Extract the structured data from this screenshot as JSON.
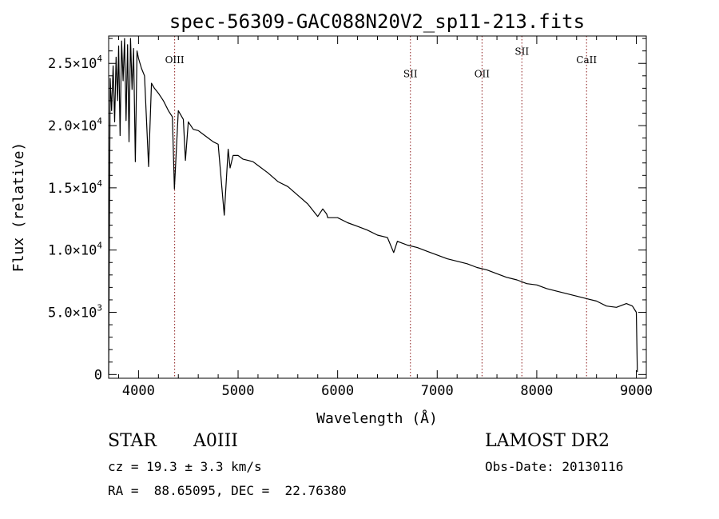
{
  "chart_data": {
    "type": "line",
    "title": "spec-56309-GAC088N20V2_sp11-213.fits",
    "xlabel": "Wavelength (Å)",
    "ylabel": "Flux (relative)",
    "xlim": [
      3700,
      9100
    ],
    "ylim": [
      -300,
      27200
    ],
    "x_ticks": [
      4000,
      5000,
      6000,
      7000,
      8000,
      9000
    ],
    "x_tick_labels": [
      "4000",
      "5000",
      "6000",
      "7000",
      "8000",
      "9000"
    ],
    "y_ticks": [
      0,
      5000,
      10000,
      15000,
      20000,
      25000
    ],
    "y_tick_labels": [
      {
        "mant": "0",
        "exp": ""
      },
      {
        "mant": "5.0×10",
        "exp": "3"
      },
      {
        "mant": "1.0×10",
        "exp": "4"
      },
      {
        "mant": "1.5×10",
        "exp": "4"
      },
      {
        "mant": "2.0×10",
        "exp": "4"
      },
      {
        "mant": "2.5×10",
        "exp": "4"
      }
    ],
    "grid": false,
    "line_color": "#000000",
    "marker_color": "#8b1a1a",
    "lines": [
      {
        "label": "OIII",
        "x": 4363,
        "label_y": 25000
      },
      {
        "label": "SII",
        "x": 6731,
        "label_y": 23900
      },
      {
        "label": "OII",
        "x": 7450,
        "label_y": 23900
      },
      {
        "label": "SII",
        "x": 7850,
        "label_y": 25700
      },
      {
        "label": "CaII",
        "x": 8500,
        "label_y": 25000
      }
    ],
    "series": [
      {
        "x": [
          3700,
          3715,
          3730,
          3745,
          3760,
          3775,
          3790,
          3800,
          3815,
          3830,
          3845,
          3860,
          3875,
          3890,
          3905,
          3920,
          3935,
          3950,
          3968,
          3985,
          4000,
          4030,
          4060,
          4101,
          4130,
          4160,
          4200,
          4250,
          4300,
          4340,
          4360,
          4400,
          4450,
          4471,
          4500,
          4550,
          4600,
          4650,
          4700,
          4750,
          4800,
          4861,
          4900,
          4920,
          4950,
          5000,
          5050,
          5100,
          5150,
          5200,
          5300,
          5400,
          5500,
          5600,
          5700,
          5800,
          5850,
          5890,
          5900,
          6000,
          6100,
          6200,
          6300,
          6400,
          6500,
          6563,
          6600,
          6700,
          6800,
          6900,
          7000,
          7100,
          7200,
          7300,
          7400,
          7500,
          7600,
          7700,
          7800,
          7900,
          8000,
          8100,
          8200,
          8300,
          8400,
          8500,
          8600,
          8700,
          8800,
          8900,
          8960,
          9000,
          9010
        ],
        "y": [
          0,
          23800,
          21200,
          24800,
          20300,
          25500,
          22000,
          26400,
          19200,
          26800,
          23600,
          27000,
          20400,
          26500,
          18700,
          27000,
          22900,
          26200,
          17100,
          26000,
          25400,
          24600,
          24000,
          16700,
          23400,
          23000,
          22600,
          22000,
          21200,
          20700,
          14900,
          21200,
          20500,
          17200,
          20300,
          19700,
          19600,
          19300,
          19000,
          18700,
          18500,
          12800,
          18100,
          16600,
          17600,
          17600,
          17300,
          17200,
          17100,
          16800,
          16200,
          15500,
          15100,
          14400,
          13700,
          12700,
          13300,
          12900,
          12600,
          12600,
          12200,
          11900,
          11600,
          11200,
          11000,
          9800,
          10700,
          10400,
          10200,
          9900,
          9600,
          9300,
          9100,
          8900,
          8600,
          8400,
          8100,
          7800,
          7600,
          7300,
          7200,
          6900,
          6700,
          6500,
          6300,
          6100,
          5900,
          5500,
          5400,
          5700,
          5500,
          5000,
          200
        ]
      }
    ]
  },
  "footer": {
    "object_type": "STAR",
    "spectral_class": "A0III",
    "survey": "LAMOST DR2",
    "redshift_line": "cz = 19.3 ± 3.3 km/s",
    "obs_date_line": "Obs-Date: 20130116",
    "coords_line": "RA =  88.65095, DEC =  22.76380"
  }
}
